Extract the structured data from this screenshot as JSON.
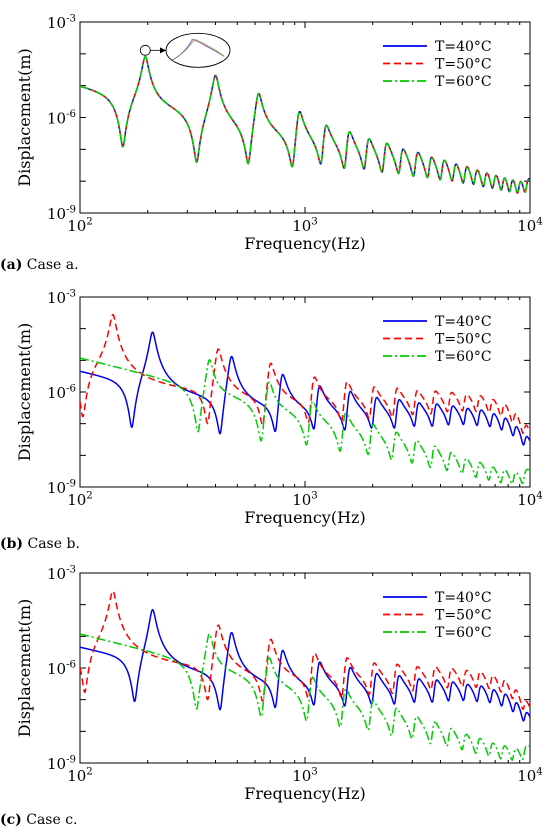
{
  "legend_entries": [
    "T=40°C",
    "T=50°C",
    "T=60°C"
  ],
  "series_colors": {
    "T=40°C": "#0000ee",
    "T=50°C": "#ff0000",
    "T=60°C": "#00cc00"
  },
  "captions": [
    {
      "tag": "(a)",
      "text": " Case a."
    },
    {
      "tag": "(b)",
      "text": " Case b."
    },
    {
      "tag": "(c)",
      "text": " Case c."
    }
  ],
  "chart_data": [
    {
      "type": "line",
      "panel": "a",
      "xlabel": "Frequency(Hz)",
      "ylabel": "Displacement(m)",
      "xscale": "log",
      "yscale": "log",
      "xlim": [
        100,
        10000
      ],
      "ylim": [
        1e-09,
        0.001
      ],
      "x_ticks": [
        100,
        1000,
        10000
      ],
      "x_tick_labels": [
        {
          "base": "10",
          "exp": "2"
        },
        {
          "base": "10",
          "exp": "3"
        },
        {
          "base": "10",
          "exp": "4"
        }
      ],
      "y_ticks": [
        1e-09,
        1e-06,
        0.001
      ],
      "y_tick_labels": [
        {
          "base": "10",
          "exp": "-9"
        },
        {
          "base": "10",
          "exp": "-6"
        },
        {
          "base": "10",
          "exp": "-3"
        }
      ],
      "legend_position": "top-right",
      "inset": "zoomed view of the first resonance peak near 195 Hz",
      "series": [
        {
          "name": "T=40°C",
          "style": "solid",
          "base_at_100Hz": 1e-05,
          "base_slope": -1.75,
          "peaks": [
            195,
            400,
            620,
            940,
            1230,
            1560,
            1900,
            2280,
            2690,
            3130,
            3600,
            4100,
            4620,
            5170,
            5740,
            6340,
            6960,
            7610,
            8280,
            8980,
            9700
          ],
          "antiresonances": [
            155,
            330,
            560,
            880,
            1180,
            1500,
            1840,
            2210,
            2620,
            3050,
            3520,
            4010,
            4530,
            5070,
            5640,
            6230,
            6840,
            7480,
            8140,
            8830,
            9550
          ],
          "peak_amplitude": 0.00012
        },
        {
          "name": "T=50°C",
          "style": "dashed",
          "base_at_100Hz": 1e-05,
          "base_slope": -1.75,
          "peaks": [
            195,
            400,
            620,
            940,
            1230,
            1560,
            1900,
            2280,
            2690,
            3130,
            3600,
            4100,
            4620,
            5170,
            5740,
            6340,
            6960,
            7610,
            8280,
            8980,
            9700
          ],
          "antiresonances": [
            155,
            330,
            560,
            880,
            1180,
            1500,
            1840,
            2210,
            2620,
            3050,
            3520,
            4010,
            4530,
            5070,
            5640,
            6230,
            6840,
            7480,
            8140,
            8830,
            9550
          ],
          "peak_amplitude": 0.00012
        },
        {
          "name": "T=60°C",
          "style": "dashdot",
          "base_at_100Hz": 1e-05,
          "base_slope": -1.75,
          "peaks": [
            195,
            400,
            620,
            940,
            1230,
            1560,
            1900,
            2280,
            2690,
            3130,
            3600,
            4100,
            4620,
            5170,
            5740,
            6340,
            6960,
            7610,
            8280,
            8980,
            9700
          ],
          "antiresonances": [
            155,
            330,
            560,
            880,
            1180,
            1500,
            1840,
            2210,
            2620,
            3050,
            3520,
            4010,
            4530,
            5070,
            5640,
            6230,
            6840,
            7480,
            8140,
            8830,
            9550
          ],
          "peak_amplitude": 0.00012
        }
      ]
    },
    {
      "type": "line",
      "panel": "b",
      "xlabel": "Frequency(Hz)",
      "ylabel": "Displacement(m)",
      "xscale": "log",
      "yscale": "log",
      "xlim": [
        100,
        10000
      ],
      "ylim": [
        1e-09,
        0.001
      ],
      "x_ticks": [
        100,
        1000,
        10000
      ],
      "x_tick_labels": [
        {
          "base": "10",
          "exp": "2"
        },
        {
          "base": "10",
          "exp": "3"
        },
        {
          "base": "10",
          "exp": "4"
        }
      ],
      "y_ticks": [
        1e-09,
        1e-06,
        0.001
      ],
      "y_tick_labels": [
        {
          "base": "10",
          "exp": "-9"
        },
        {
          "base": "10",
          "exp": "-6"
        },
        {
          "base": "10",
          "exp": "-3"
        }
      ],
      "legend_position": "top-right",
      "series": [
        {
          "name": "T=40°C",
          "style": "solid",
          "base_at_100Hz": 4e-06,
          "base_slope": -1.75,
          "peaks": [
            210,
            470,
            790,
            1150,
            1570,
            2050,
            2580,
            3150,
            3780,
            4450,
            5170,
            5940,
            6760,
            7620,
            8540,
            9500
          ],
          "antiresonances": [
            170,
            420,
            740,
            1100,
            1510,
            1990,
            2510,
            3080,
            3700,
            4370,
            5090,
            5850,
            6670,
            7520,
            8440,
            9390
          ],
          "peak_amplitude": 0.0001
        },
        {
          "name": "T=50°C",
          "style": "dashed",
          "base_at_100Hz": 5e-06,
          "base_slope": -1.75,
          "peaks": [
            140,
            410,
            700,
            1090,
            1520,
            2000,
            2530,
            3100,
            3730,
            4400,
            5120,
            5890,
            6710,
            7570,
            8490,
            9450
          ],
          "antiresonances": [
            103,
            370,
            650,
            1040,
            1460,
            1940,
            2460,
            3030,
            3650,
            4320,
            5040,
            5800,
            6620,
            7470,
            8390,
            9340
          ],
          "peak_amplitude": 0.0003
        },
        {
          "name": "T=60°C",
          "style": "dashdot",
          "base_at_100Hz": 1.2e-05,
          "base_slope": -1.75,
          "peaks": [
            375,
            690,
            1070,
            1500,
            1980,
            2510,
            3080,
            3710,
            4380,
            5100,
            5870,
            6690,
            7550,
            8470,
            9430
          ],
          "antiresonances": [
            335,
            640,
            1020,
            1440,
            1920,
            2440,
            3010,
            3630,
            4300,
            5020,
            5780,
            6600,
            7450,
            8370,
            9320
          ],
          "peak_amplitude": 3e-05
        }
      ]
    },
    {
      "type": "line",
      "panel": "c",
      "xlabel": "Frequency(Hz)",
      "ylabel": "Displacement(m)",
      "xscale": "log",
      "yscale": "log",
      "xlim": [
        100,
        10000
      ],
      "ylim": [
        1e-09,
        0.001
      ],
      "x_ticks": [
        100,
        1000,
        10000
      ],
      "x_tick_labels": [
        {
          "base": "10",
          "exp": "2"
        },
        {
          "base": "10",
          "exp": "3"
        },
        {
          "base": "10",
          "exp": "4"
        }
      ],
      "y_ticks": [
        1e-09,
        1e-06,
        0.001
      ],
      "y_tick_labels": [
        {
          "base": "10",
          "exp": "-9"
        },
        {
          "base": "10",
          "exp": "-6"
        },
        {
          "base": "10",
          "exp": "-3"
        }
      ],
      "legend_position": "top-right",
      "series": [
        {
          "name": "T=40°C",
          "style": "solid",
          "base_at_100Hz": 4e-06,
          "base_slope": -1.75,
          "peaks": [
            210,
            470,
            790,
            1150,
            1570,
            2050,
            2580,
            3150,
            3780,
            4450,
            5170,
            5940,
            6760,
            7620,
            8540,
            9500
          ],
          "antiresonances": [
            175,
            420,
            740,
            1100,
            1510,
            1990,
            2510,
            3080,
            3700,
            4370,
            5090,
            5850,
            6670,
            7520,
            8440,
            9390
          ],
          "peak_amplitude": 0.0001
        },
        {
          "name": "T=50°C",
          "style": "dashed",
          "base_at_100Hz": 5e-06,
          "base_slope": -1.75,
          "peaks": [
            140,
            410,
            700,
            1090,
            1520,
            2000,
            2530,
            3100,
            3730,
            4400,
            5120,
            5890,
            6710,
            7570,
            8490,
            9450
          ],
          "antiresonances": [
            105,
            370,
            650,
            1040,
            1460,
            1940,
            2460,
            3030,
            3650,
            4320,
            5040,
            5800,
            6620,
            7470,
            8390,
            9340
          ],
          "peak_amplitude": 0.0003
        },
        {
          "name": "T=60°C",
          "style": "dashdot",
          "base_at_100Hz": 1.2e-05,
          "base_slope": -1.75,
          "peaks": [
            375,
            690,
            1070,
            1500,
            1980,
            2510,
            3080,
            3710,
            4380,
            5100,
            5870,
            6690,
            7550,
            8470,
            9430
          ],
          "antiresonances": [
            330,
            640,
            1020,
            1440,
            1920,
            2440,
            3010,
            3630,
            4300,
            5020,
            5780,
            6600,
            7450,
            8370,
            9320
          ],
          "peak_amplitude": 3e-05
        }
      ]
    }
  ]
}
